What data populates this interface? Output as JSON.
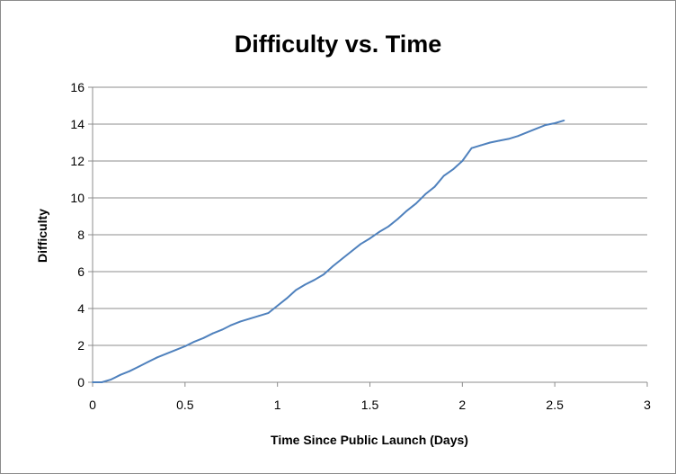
{
  "chart_data": {
    "type": "line",
    "title": "Difficulty vs. Time",
    "xlabel": "Time Since Public Launch (Days)",
    "ylabel": "Difficulty",
    "xlim": [
      0,
      3
    ],
    "ylim": [
      0,
      16
    ],
    "xticks": [
      0,
      0.5,
      1,
      1.5,
      2,
      2.5,
      3
    ],
    "xtick_labels": [
      "0",
      "0.5",
      "1",
      "1.5",
      "2",
      "2.5",
      "3"
    ],
    "yticks": [
      0,
      2,
      4,
      6,
      8,
      10,
      12,
      14,
      16
    ],
    "ytick_labels": [
      "0",
      "2",
      "4",
      "6",
      "8",
      "10",
      "12",
      "14",
      "16"
    ],
    "grid": "horizontal",
    "legend": "none",
    "series_color": "#4f81bd",
    "series": [
      {
        "x": [
          0,
          0.05,
          0.1,
          0.15,
          0.2,
          0.25,
          0.3,
          0.35,
          0.4,
          0.45,
          0.5,
          0.55,
          0.6,
          0.65,
          0.7,
          0.75,
          0.8,
          0.85,
          0.9,
          0.95,
          1.0,
          1.05,
          1.1,
          1.15,
          1.2,
          1.25,
          1.3,
          1.35,
          1.4,
          1.45,
          1.5,
          1.55,
          1.6,
          1.65,
          1.7,
          1.75,
          1.8,
          1.85,
          1.9,
          1.95,
          2.0,
          2.05,
          2.1,
          2.15,
          2.2,
          2.25,
          2.3,
          2.35,
          2.4,
          2.45,
          2.5,
          2.55
        ],
        "values": [
          0,
          0,
          0.15,
          0.4,
          0.6,
          0.85,
          1.1,
          1.35,
          1.55,
          1.75,
          1.95,
          2.2,
          2.4,
          2.65,
          2.85,
          3.1,
          3.3,
          3.45,
          3.6,
          3.75,
          4.15,
          4.55,
          5.0,
          5.3,
          5.55,
          5.85,
          6.3,
          6.7,
          7.1,
          7.5,
          7.8,
          8.15,
          8.45,
          8.85,
          9.3,
          9.7,
          10.2,
          10.6,
          11.2,
          11.55,
          12.0,
          12.7,
          12.85,
          13.0,
          13.1,
          13.2,
          13.35,
          13.55,
          13.75,
          13.95,
          14.05,
          14.2
        ]
      }
    ]
  }
}
